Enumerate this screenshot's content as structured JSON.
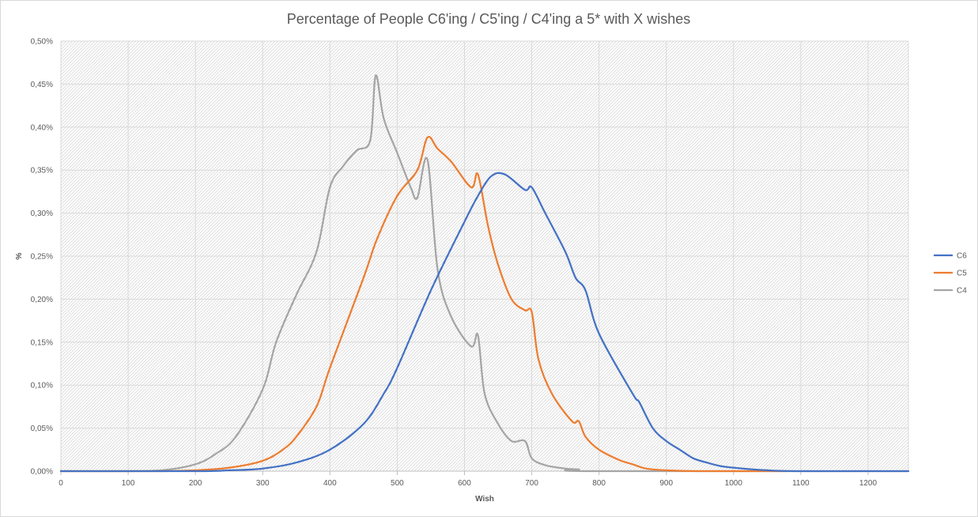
{
  "chart_data": {
    "type": "line",
    "title": "Percentage of People C6'ing / C5'ing / C4'ing a 5* with X wishes",
    "xlabel": "Wish",
    "ylabel": "%",
    "xlim": [
      0,
      1260
    ],
    "ylim": [
      0,
      0.5
    ],
    "x_ticks": [
      0,
      100,
      200,
      300,
      400,
      500,
      600,
      700,
      800,
      900,
      1000,
      1100,
      1200
    ],
    "y_ticks": [
      0,
      0.05,
      0.1,
      0.15,
      0.2,
      0.25,
      0.3,
      0.35,
      0.4,
      0.45,
      0.5
    ],
    "y_tick_labels": [
      "0,00%",
      "0,05%",
      "0,10%",
      "0,15%",
      "0,20%",
      "0,25%",
      "0,30%",
      "0,35%",
      "0,40%",
      "0,45%",
      "0,50%"
    ],
    "grid": true,
    "legend_position": "right",
    "series": [
      {
        "name": "C6",
        "color": "#4472C4",
        "points": [
          [
            0,
            0
          ],
          [
            200,
            0
          ],
          [
            250,
            0.001
          ],
          [
            300,
            0.003
          ],
          [
            350,
            0.01
          ],
          [
            400,
            0.025
          ],
          [
            450,
            0.055
          ],
          [
            480,
            0.09
          ],
          [
            500,
            0.12
          ],
          [
            550,
            0.21
          ],
          [
            600,
            0.29
          ],
          [
            620,
            0.32
          ],
          [
            640,
            0.343
          ],
          [
            660,
            0.345
          ],
          [
            690,
            0.327
          ],
          [
            700,
            0.33
          ],
          [
            720,
            0.3
          ],
          [
            750,
            0.255
          ],
          [
            765,
            0.225
          ],
          [
            780,
            0.21
          ],
          [
            800,
            0.16
          ],
          [
            850,
            0.09
          ],
          [
            860,
            0.08
          ],
          [
            880,
            0.05
          ],
          [
            900,
            0.035
          ],
          [
            920,
            0.025
          ],
          [
            940,
            0.015
          ],
          [
            960,
            0.01
          ],
          [
            980,
            0.006
          ],
          [
            1000,
            0.004
          ],
          [
            1050,
            0.001
          ],
          [
            1100,
            0
          ],
          [
            1260,
            0
          ]
        ]
      },
      {
        "name": "C5",
        "color": "#ED7D31",
        "points": [
          [
            0,
            0
          ],
          [
            150,
            0
          ],
          [
            200,
            0.001
          ],
          [
            250,
            0.004
          ],
          [
            300,
            0.012
          ],
          [
            330,
            0.025
          ],
          [
            350,
            0.04
          ],
          [
            380,
            0.075
          ],
          [
            400,
            0.12
          ],
          [
            450,
            0.225
          ],
          [
            470,
            0.27
          ],
          [
            500,
            0.32
          ],
          [
            530,
            0.35
          ],
          [
            545,
            0.388
          ],
          [
            560,
            0.375
          ],
          [
            580,
            0.36
          ],
          [
            610,
            0.33
          ],
          [
            620,
            0.345
          ],
          [
            635,
            0.285
          ],
          [
            650,
            0.24
          ],
          [
            670,
            0.2
          ],
          [
            690,
            0.187
          ],
          [
            700,
            0.185
          ],
          [
            710,
            0.13
          ],
          [
            730,
            0.09
          ],
          [
            760,
            0.058
          ],
          [
            770,
            0.058
          ],
          [
            780,
            0.04
          ],
          [
            800,
            0.025
          ],
          [
            830,
            0.013
          ],
          [
            850,
            0.008
          ],
          [
            870,
            0.003
          ],
          [
            900,
            0.001
          ],
          [
            950,
            0
          ],
          [
            1080,
            0
          ]
        ]
      },
      {
        "name": "C4",
        "color": "#A5A5A5",
        "points": [
          [
            0,
            0
          ],
          [
            100,
            0
          ],
          [
            150,
            0.001
          ],
          [
            200,
            0.008
          ],
          [
            230,
            0.02
          ],
          [
            260,
            0.04
          ],
          [
            300,
            0.095
          ],
          [
            320,
            0.15
          ],
          [
            350,
            0.205
          ],
          [
            380,
            0.255
          ],
          [
            400,
            0.33
          ],
          [
            420,
            0.355
          ],
          [
            440,
            0.373
          ],
          [
            460,
            0.385
          ],
          [
            468,
            0.46
          ],
          [
            480,
            0.41
          ],
          [
            500,
            0.37
          ],
          [
            520,
            0.33
          ],
          [
            530,
            0.318
          ],
          [
            545,
            0.362
          ],
          [
            560,
            0.235
          ],
          [
            580,
            0.18
          ],
          [
            610,
            0.145
          ],
          [
            620,
            0.158
          ],
          [
            630,
            0.09
          ],
          [
            650,
            0.055
          ],
          [
            670,
            0.035
          ],
          [
            690,
            0.035
          ],
          [
            700,
            0.015
          ],
          [
            720,
            0.007
          ],
          [
            750,
            0.003
          ],
          [
            770,
            0.002
          ],
          [
            790,
            0
          ],
          [
            1260,
            0
          ]
        ]
      }
    ]
  }
}
